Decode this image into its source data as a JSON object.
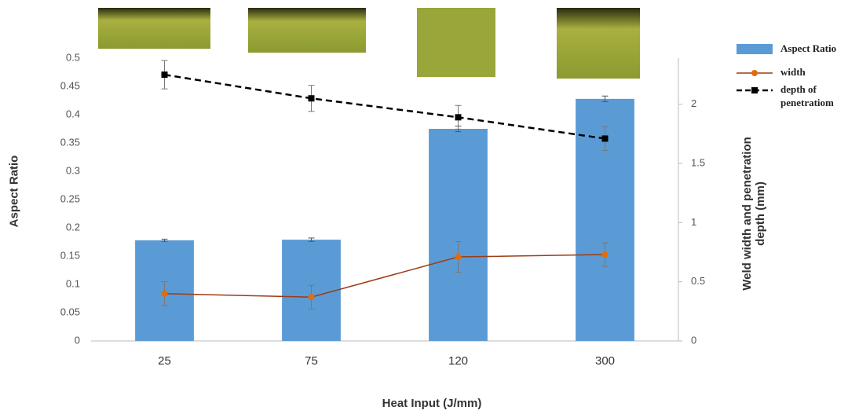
{
  "chart_data": {
    "type": "bar",
    "x_label": "Heat Input (J/mm)",
    "y_label": "Aspect Ratio",
    "y2_label": "Weld width and penetration depth (mm)",
    "categories": [
      "25",
      "75",
      "120",
      "300"
    ],
    "series": [
      {
        "name": "Aspect Ratio",
        "type": "bar",
        "color": "#5b9bd5",
        "values": [
          0.178,
          0.179,
          0.375,
          0.428
        ],
        "errors": [
          0.002,
          0.003,
          0.005,
          0.005
        ]
      },
      {
        "name": "width",
        "type": "line",
        "axis": "y2",
        "color": "#e36c09",
        "line_color": "#9c3b14",
        "dashed": false,
        "values": [
          0.4,
          0.37,
          0.71,
          0.73
        ],
        "errors": [
          0.1,
          0.1,
          0.13,
          0.1
        ]
      },
      {
        "name": "depth of penetratiom",
        "type": "line",
        "axis": "y2",
        "color": "#000000",
        "line_color": "#000000",
        "dashed": true,
        "values": [
          2.25,
          2.05,
          1.89,
          1.71
        ],
        "errors": [
          0.12,
          0.11,
          0.1,
          0.1
        ]
      }
    ],
    "ylim": [
      0,
      0.5
    ],
    "yticks": [
      0,
      0.05,
      0.1,
      0.15,
      0.2,
      0.25,
      0.3,
      0.35,
      0.4,
      0.45,
      0.5
    ],
    "y2lim": [
      0,
      2.39
    ],
    "y2ticks": [
      0,
      0.5,
      1,
      1.5,
      2
    ],
    "grid": false,
    "legend": "right"
  }
}
